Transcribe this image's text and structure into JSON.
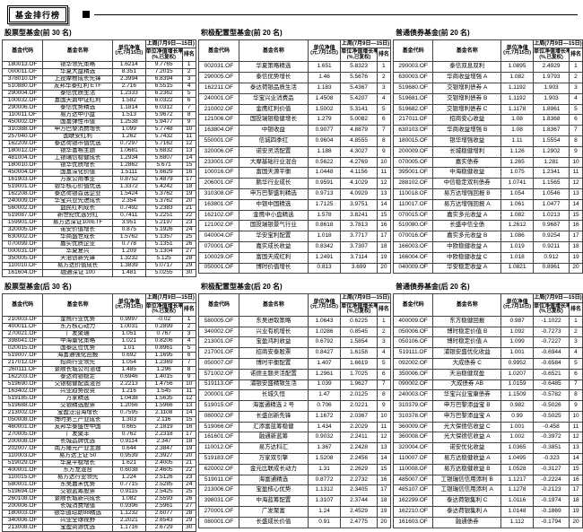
{
  "page_header": {
    "title": "基金排行榜"
  },
  "columns": {
    "code": "基金代码",
    "name": "基金名称",
    "nav_line1": "单位净值",
    "nav_line2": "(元,7月15日)",
    "week_span": "上周(7月9日—15日)",
    "growth_line1": "单位净值增长率",
    "growth_line2": "(%,已复权)",
    "rank": "排名"
  },
  "tables": [
    {
      "title": "股票型基金(前 30 名)",
      "rows": [
        [
          "180013.OF",
          "银华领先策略",
          "1.6214",
          "9.7765",
          "1"
        ],
        [
          "000011.OF",
          "华夏大盘精选",
          "8.351",
          "7.2015",
          "2"
        ],
        [
          "378010.OF",
          "上投摩根成长先锋",
          "2.3994",
          "6.8394",
          "3"
        ],
        [
          "510880.OF",
          "友邦华泰红利 ETF",
          "2.716",
          "6.5515",
          "4"
        ],
        [
          "290004.OF",
          "泰信优质生活",
          "1.2333",
          "6.2362",
          "5"
        ],
        [
          "100032.OF",
          "富国天鼎中证红利",
          "1.582",
          "6.0322",
          "6"
        ],
        [
          "290006.OF",
          "泰信优势精选",
          "1.1814",
          "6.0312",
          "7"
        ],
        [
          "110011.OF",
          "易方达中小盘",
          "1.513",
          "5.9672",
          "8"
        ],
        [
          "450002.OF",
          "国富弹性市值",
          "1.2538",
          "5.9477",
          "9"
        ],
        [
          "310388.OF",
          "申万巴黎消费增长",
          "1.099",
          "5.7748",
          "10"
        ],
        [
          "257040.OF",
          "国联安红利",
          "1.262",
          "5.7432",
          "11"
        ],
        [
          "162209.OF",
          "泰达荷银市值优选",
          "0.7297",
          "5.7162",
          "12"
        ],
        [
          "180012.OF",
          "银华富裕主题",
          "1.0681",
          "5.6832",
          "13"
        ],
        [
          "481004.OF",
          "工银瑞信稳健成长",
          "1.2934",
          "5.6807",
          "14"
        ],
        [
          "180010.OF",
          "银华优质增长",
          "1.2862",
          "5.671",
          "15"
        ],
        [
          "450004.OF",
          "国富深化价值",
          "1.5111",
          "5.6629",
          "16"
        ],
        [
          "161903.OF",
          "万家公用事业",
          "0.8752",
          "5.4879",
          "17"
        ],
        [
          "519001.OF",
          "银华核心价值优选",
          "1.3372",
          "5.4242",
          "18"
        ],
        [
          "162208.OF",
          "泰达荷银首选企业",
          "1.5424",
          "5.3762",
          "19"
        ],
        [
          "240009.OF",
          "华宝兴业先进成长",
          "2.354",
          "5.3762",
          "20"
        ],
        [
          "560002.OF",
          "益民红利成长",
          "0.7492",
          "5.2383",
          "21"
        ],
        [
          "519087.OF",
          "新世纪优选分红",
          "0.7411",
          "5.2251",
          "22"
        ],
        [
          "159901.OF",
          "易方达深证100ETF",
          "3.951",
          "5.2197",
          "23"
        ],
        [
          "320005.OF",
          "诺安价值增长",
          "0.875",
          "5.1926",
          "24"
        ],
        [
          "630002.OF",
          "华商盛世成长",
          "1.5762",
          "5.1357",
          "25"
        ],
        [
          "070099.OF",
          "嘉实优质企业",
          "0.778",
          "5.1351",
          "26"
        ],
        [
          "000031.OF",
          "华夏复兴",
          "1.209",
          "5.1304",
          "27"
        ],
        [
          "350005.OF",
          "天治创新先锋",
          "1.3232",
          "5.125",
          "28"
        ],
        [
          "110010.OF",
          "易方达价值成长",
          "1.3839",
          "5.0717",
          "29"
        ],
        [
          "161604.OF",
          "融通深证 100",
          "1.481",
          "5.0255",
          "30"
        ]
      ]
    },
    {
      "title": "积极配置型基金(前 20 名)",
      "rows": [
        [
          "002031.OF",
          "华夏策略精选",
          "1.651",
          "5.8323",
          "1"
        ],
        [
          "290005.OF",
          "泰信优势增长",
          "1.46",
          "5.5676",
          "2"
        ],
        [
          "162211.OF",
          "泰达荷银品质生活",
          "1.183",
          "5.4367",
          "3"
        ],
        [
          "240001.OF",
          "华宝兴业消费品",
          "1.4508",
          "5.4207",
          "4"
        ],
        [
          "210002.OF",
          "金鹰红利价值",
          "1.5002",
          "5.3141",
          "5"
        ],
        [
          "121006.OF",
          "国投瑞银稳健增长",
          "1.279",
          "5.0082",
          "6"
        ],
        [
          "163804.OF",
          "中银收益",
          "0.9077",
          "4.8879",
          "7"
        ],
        [
          "550001.OF",
          "信诚四季红",
          "0.9604",
          "4.8555",
          "8"
        ],
        [
          "320006.OF",
          "诺安灵活配置",
          "1.188",
          "4.3027",
          "9"
        ],
        [
          "233001.OF",
          "大摩基础行业混合",
          "0.5622",
          "4.2769",
          "10"
        ],
        [
          "100016.OF",
          "富国天源平衡",
          "1.0448",
          "4.1156",
          "11"
        ],
        [
          "206001.OF",
          "鹏华行业成长",
          "0.9591",
          "4.1029",
          "12"
        ],
        [
          "310308.OF",
          "申万巴黎盛利精选",
          "0.9713",
          "4.0929",
          "13"
        ],
        [
          "163801.OF",
          "中银中国精选",
          "1.7125",
          "3.9751",
          "14"
        ],
        [
          "162102.OF",
          "金鹰中小盘精选",
          "1.578",
          "3.8241",
          "15"
        ],
        [
          "121002.OF",
          "国投瑞银景气行业",
          "0.8618",
          "3.7813",
          "16"
        ],
        [
          "040004.OF",
          "华安宝利配置",
          "1.018",
          "3.7717",
          "17"
        ],
        [
          "070001.OF",
          "嘉实成长收益",
          "0.8342",
          "3.7307",
          "18"
        ],
        [
          "100029.OF",
          "富国天成红利",
          "1.2491",
          "3.7114",
          "19"
        ],
        [
          "050001.OF",
          "博时价值增长",
          "0.813",
          "3.699",
          "20"
        ]
      ]
    },
    {
      "title": "普通债券基金(前 20 名)",
      "rows": [
        [
          "290003.OF",
          "泰信双息双利",
          "1.0895",
          "2.4929",
          "1"
        ],
        [
          "630003.OF",
          "华商收益增强 A",
          "1.082",
          "1.9793",
          "2"
        ],
        [
          "519680.OF",
          "交银增利债券 A",
          "1.1192",
          "1.903",
          "3"
        ],
        [
          "519681.OF",
          "交银增利债券 B",
          "1.1192",
          "1.903",
          "4"
        ],
        [
          "519682.OF",
          "交银增利债券 C",
          "1.1178",
          "1.8961",
          "5"
        ],
        [
          "217011.OF",
          "招商安心收益",
          "1.08",
          "1.8368",
          "6"
        ],
        [
          "630103.OF",
          "华商收益增强 B",
          "1.08",
          "1.8367",
          "7"
        ],
        [
          "180015.OF",
          "银华增强收益",
          "1.11",
          "1.5554",
          "8"
        ],
        [
          "200009.OF",
          "长城稳健增利",
          "1.126",
          "1.2902",
          "9"
        ],
        [
          "070005.OF",
          "嘉实债券",
          "1.265",
          "1.281",
          "10"
        ],
        [
          "395001.OF",
          "中海稳健收益",
          "1.075",
          "1.2341",
          "11"
        ],
        [
          "288102.OF",
          "中信稳定双利债券",
          "1.0741",
          "1.1565",
          "12"
        ],
        [
          "110018.OF",
          "易方达增强回报 B",
          "1.054",
          "1.0546",
          "13"
        ],
        [
          "110017.OF",
          "易方达增强回报 A",
          "1.061",
          "1.0477",
          "14"
        ],
        [
          "070015.OF",
          "嘉实多元收益 A",
          "1.082",
          "1.0213",
          "15"
        ],
        [
          "510080.OF",
          "长盛中信全债",
          "1.2612",
          "0.9687",
          "16"
        ],
        [
          "070016.OF",
          "嘉实多元收益 B",
          "1.086",
          "0.9254",
          "17"
        ],
        [
          "166003.OF",
          "中欧稳健收益 A",
          "1.019",
          "0.9211",
          "18"
        ],
        [
          "166004.OF",
          "中欧稳健收益 C",
          "1.018",
          "0.912",
          "19"
        ],
        [
          "040009.OF",
          "华安稳定收益 A",
          "1.0821",
          "0.8961",
          "20"
        ]
      ]
    },
    {
      "title": "股票型基金(后 30 名)",
      "rows": [
        [
          "210003.OF",
          "金鹰行业优势",
          "0.9997",
          "-0.02",
          "1"
        ],
        [
          "400011.OF",
          "东方核心动力",
          "1.0031",
          "0.2899",
          "2"
        ],
        [
          "270021.OF",
          "广发聚瑞",
          "1.051",
          "0.767",
          "3"
        ],
        [
          "398041.OF",
          "中海量化策略",
          "1.021",
          "0.8206",
          "4"
        ],
        [
          "020015.OF",
          "国泰区位优势",
          "1.01",
          "0.8961",
          "5"
        ],
        [
          "519007.OF",
          "海富通强化回报",
          "0.692",
          "1.1695",
          "6"
        ],
        [
          "217012.OF",
          "招商行业领先",
          "1.054",
          "1.2369",
          "7"
        ],
        [
          "260111.OF",
          "景顺长城公司治理",
          "1.485",
          "1.296",
          "8"
        ],
        [
          "162203.OF",
          "泰达荷银稳定",
          "0.6946",
          "1.4015",
          "9"
        ],
        [
          "519690.OF",
          "交银稳健配置混合",
          "2.2213",
          "1.4756",
          "10"
        ],
        [
          "163402.OF",
          "兴业趋势投资",
          "1.216",
          "1.545",
          "11"
        ],
        [
          "519185.OF",
          "万家精选",
          "1.0438",
          "1.5635",
          "12"
        ],
        [
          "519688.OF",
          "交银精选股票",
          "1.2056",
          "1.5966",
          "13"
        ],
        [
          "213002.OF",
          "宝盈泛沿海增长",
          "0.7595",
          "2.1108",
          "14"
        ],
        [
          "050008.OF",
          "博时第三产业成长",
          "1.303",
          "2.116",
          "15"
        ],
        [
          "460001.OF",
          "友邦华泰盛世中国",
          "0.665",
          "2.1819",
          "16"
        ],
        [
          "270005.OF",
          "广发聚丰",
          "0.762",
          "2.2318",
          "17"
        ],
        [
          "200008.OF",
          "长城品牌优选",
          "0.9114",
          "2.347",
          "18"
        ],
        [
          "202007.OF",
          "南方隆元产业主题",
          "0.644",
          "2.3847",
          "19"
        ],
        [
          "110003.OF",
          "易方达上证 50",
          "0.9539",
          "2.3927",
          "20"
        ],
        [
          "519029.OF",
          "华夏平稳增长",
          "1.621",
          "2.4005",
          "21"
        ],
        [
          "400001.OF",
          "东方龙混合",
          "0.6038",
          "2.4605",
          "22"
        ],
        [
          "110015.OF",
          "易方达行业领先",
          "1.224",
          "2.5126",
          "23"
        ],
        [
          "580001.OF",
          "东吴嘉禾优势",
          "0.7715",
          "2.5285",
          "24"
        ],
        [
          "519694.OF",
          "交银蓝筹股票",
          "0.9115",
          "2.5425",
          "25"
        ],
        [
          "260108.OF",
          "景顺长城新兴成长",
          "1.082",
          "2.5593",
          "26"
        ],
        [
          "200006.OF",
          "长城消费增值",
          "0.9396",
          "2.5961",
          "27"
        ],
        [
          "180003.OF",
          "银华道琼斯88精选",
          "1.1232",
          "2.6077",
          "28"
        ],
        [
          "340006.OF",
          "兴业全球视野",
          "2.2021",
          "2.6543",
          "29"
        ],
        [
          "213008.OF",
          "宝盈资源优选",
          "1.1716",
          "2.6729",
          "30"
        ]
      ]
    },
    {
      "title": "积极配置型基金(后 20 名)",
      "rows": [
        [
          "580005.OF",
          "东吴进取策略",
          "1.0643",
          "0.6225",
          "1"
        ],
        [
          "340002.OF",
          "兴业有机增长",
          "1.0286",
          "0.8545",
          "2"
        ],
        [
          "213001.OF",
          "宝盈鸿利收益",
          "0.6792",
          "1.5854",
          "3"
        ],
        [
          "217001.OF",
          "招商安泰股票",
          "0.8427",
          "1.6158",
          "4"
        ],
        [
          "050007.OF",
          "博时平衡配置",
          "1.407",
          "1.6619",
          "5"
        ],
        [
          "571002.OF",
          "诺德主题灵活配置",
          "1.2961",
          "1.7025",
          "6"
        ],
        [
          "519113.OF",
          "浦银安盛精致生活",
          "1.039",
          "1.9627",
          "7"
        ],
        [
          "200001.OF",
          "长城久恒",
          "1.47",
          "2.0125",
          "8"
        ],
        [
          "519015.OF",
          "海富通精选 2 号",
          "0.706",
          "2.0221",
          "9"
        ],
        [
          "080002.OF",
          "长盛创新先锋",
          "1.1672",
          "2.0367",
          "10"
        ],
        [
          "519066.OF",
          "汇添富蓝筹稳健",
          "1.434",
          "2.2029",
          "11"
        ],
        [
          "161601.OF",
          "融通新蓝筹",
          "0.9032",
          "2.2411",
          "12"
        ],
        [
          "110012.OF",
          "易方达科汇",
          "1.367",
          "2.2428",
          "13"
        ],
        [
          "519183.OF",
          "万家双引擎",
          "1.5208",
          "2.2456",
          "14"
        ],
        [
          "620002.OF",
          "金元比联成长动力",
          "1.31",
          "2.2629",
          "15"
        ],
        [
          "519011.OF",
          "海富通精选",
          "0.8772",
          "2.2732",
          "16"
        ],
        [
          "213006.OF",
          "宝盈核心优势",
          "1.1312",
          "2.3405",
          "17"
        ],
        [
          "398031.OF",
          "中海蓝筹配置",
          "1.3107",
          "2.3744",
          "18"
        ],
        [
          "270001.OF",
          "广发聚富",
          "1.24",
          "2.4529",
          "19"
        ],
        [
          "080001.OF",
          "长盛成长价值",
          "0.91",
          "2.4775",
          "20"
        ]
      ]
    },
    {
      "title": "普通债券基金(后 20 名)",
      "rows": [
        [
          "400009.OF",
          "东方稳健回报",
          "0.987",
          "-1.1022",
          "1"
        ],
        [
          "050006.OF",
          "博时稳定价值 B",
          "1.092",
          "-0.7273",
          "2"
        ],
        [
          "050106.OF",
          "博时稳定价值 A",
          "1.099",
          "-0.7227",
          "3"
        ],
        [
          "519111.OF",
          "浦银安盛优化收益",
          "1.001",
          "-0.6944",
          "4"
        ],
        [
          "092002.OF",
          "大成债券 C",
          "0.9952",
          "-0.6584",
          "5"
        ],
        [
          "350006.OF",
          "天治稳健双盈",
          "1.0207",
          "-0.6521",
          "6"
        ],
        [
          "090002.OF",
          "大成债券 AB",
          "1.0159",
          "-0.6485",
          "7"
        ],
        [
          "240003.OF",
          "华宝兴业宝康债券",
          "1.1509",
          "-0.5782",
          "8"
        ],
        [
          "310379.OF",
          "申万巴黎添益宝 B",
          "0.982",
          "-0.5026",
          "9"
        ],
        [
          "310378.OF",
          "申万巴黎添益宝 A",
          "0.99",
          "-0.5025",
          "10"
        ],
        [
          "360009.OF",
          "光大保德信收益 C",
          "1.001",
          "-0.458",
          "11"
        ],
        [
          "360008.OF",
          "光大保德信收益 A",
          "1.002",
          "-0.3972",
          "12"
        ],
        [
          "320004.OF",
          "诺安优化收益",
          "1.0365",
          "-0.3851",
          "13"
        ],
        [
          "110007.OF",
          "易方达稳健收益 A",
          "1.0495",
          "-0.323",
          "14"
        ],
        [
          "110008.OF",
          "易方达稳健收益 B",
          "1.0528",
          "-0.3127",
          "15"
        ],
        [
          "485007.OF",
          "工银瑞信信用添利 B",
          "1.1217",
          "-0.2224",
          "16"
        ],
        [
          "485107.OF",
          "工银瑞信信用添利 A",
          "1.1278",
          "-0.2123",
          "17"
        ],
        [
          "162299.OF",
          "泰达荷银集利 C",
          "1.0116",
          "-0.1974",
          "18"
        ],
        [
          "162210.OF",
          "泰达荷银集利 A",
          "1.0148",
          "-0.1869",
          "19"
        ],
        [
          "161603.OF",
          "融通债券",
          "1.112",
          "-0.1794",
          "20"
        ]
      ]
    }
  ]
}
